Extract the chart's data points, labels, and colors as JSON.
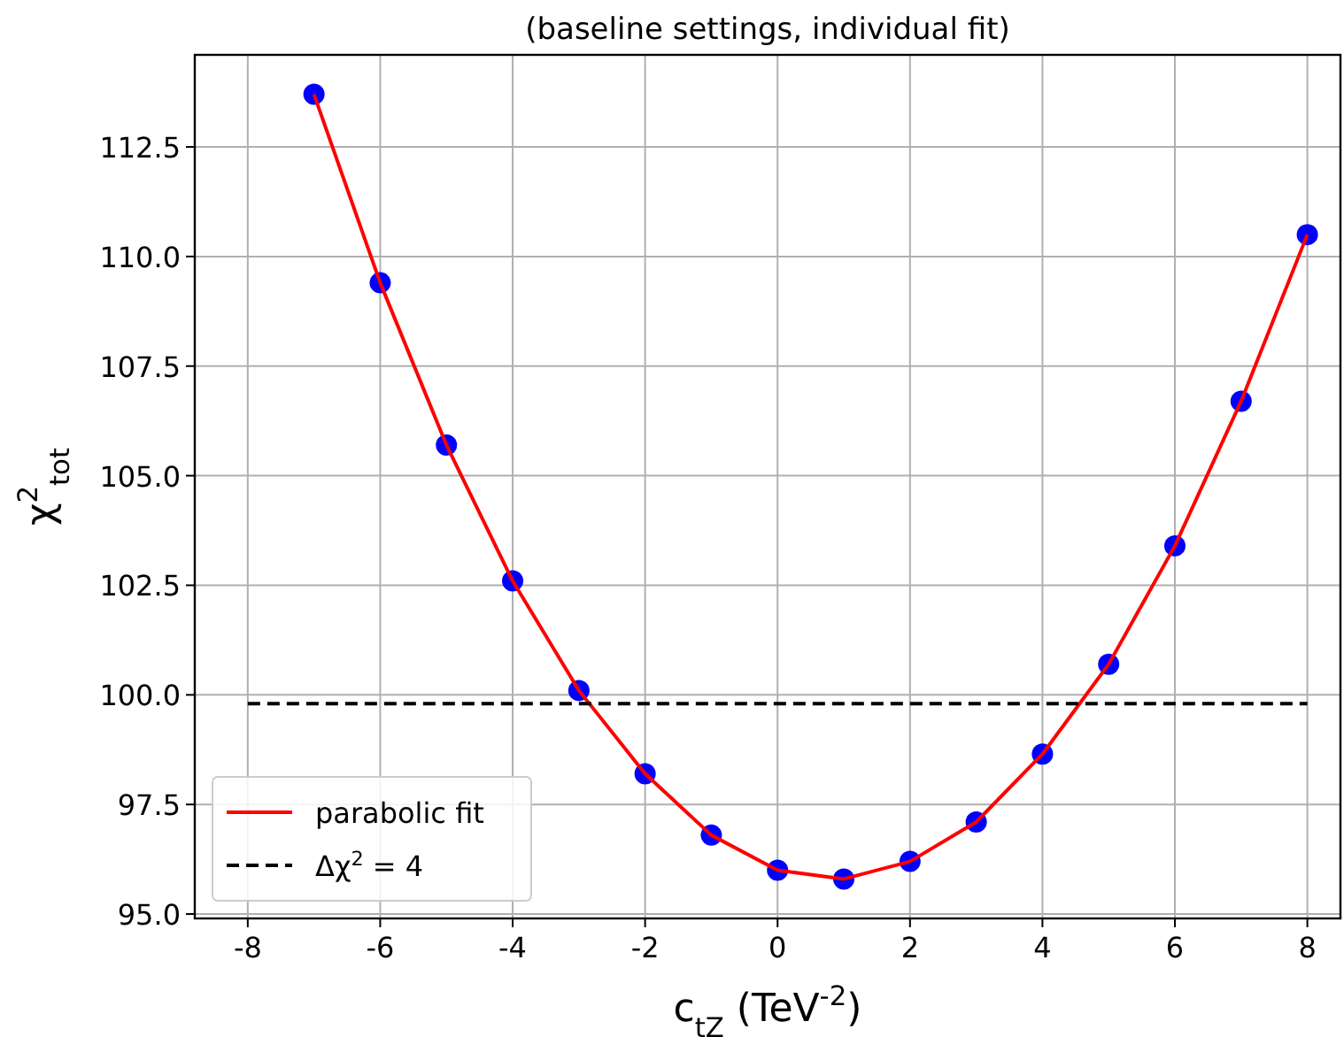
{
  "chart_data": {
    "type": "scatter",
    "title": "(baseline settings, individual fit)",
    "xlabel": "c$_{tZ}$ (TeV$^{-2}$)",
    "ylabel": "χ$^{2}$$_{tot}$",
    "x": [
      -7,
      -6,
      -5,
      -4,
      -3,
      -2,
      -1,
      0,
      1,
      2,
      3,
      4,
      5,
      6,
      7,
      8
    ],
    "series": [
      {
        "color": "#0000ff",
        "marker": "circle",
        "values": [
          113.7,
          109.4,
          105.7,
          102.6,
          100.1,
          98.2,
          96.8,
          96.0,
          95.8,
          96.2,
          97.1,
          98.65,
          100.7,
          103.4,
          106.7,
          110.5
        ]
      },
      {
        "type": "line",
        "name": "parabolic fit",
        "color": "#ff0000",
        "line_style": "solid",
        "values": [
          113.7,
          109.4,
          105.7,
          102.6,
          100.1,
          98.2,
          96.8,
          96.0,
          95.8,
          96.2,
          97.1,
          98.65,
          100.7,
          103.4,
          106.7,
          110.5
        ]
      },
      {
        "type": "line",
        "name": "Δχ$^{2}$ = 4",
        "color": "#000000",
        "line_style": "dashed",
        "x": [
          -8,
          8
        ],
        "values": [
          99.8,
          99.8
        ]
      }
    ],
    "xlim": [
      -8.8,
      8.5
    ],
    "ylim": [
      94.9,
      114.6
    ],
    "xticks": [
      -8,
      -6,
      -4,
      -2,
      0,
      2,
      4,
      6,
      8
    ],
    "yticks": [
      {
        "value": 95,
        "label": "95.0"
      },
      {
        "value": 97.5,
        "label": "97.5"
      },
      {
        "value": 100,
        "label": "100.0"
      },
      {
        "value": 102.5,
        "label": "102.5"
      },
      {
        "value": 105,
        "label": "105.0"
      },
      {
        "value": 107.5,
        "label": "107.5"
      },
      {
        "value": 110,
        "label": "110.0"
      },
      {
        "value": 112.5,
        "label": "112.5"
      }
    ],
    "grid": true,
    "legend": "bottom left"
  }
}
